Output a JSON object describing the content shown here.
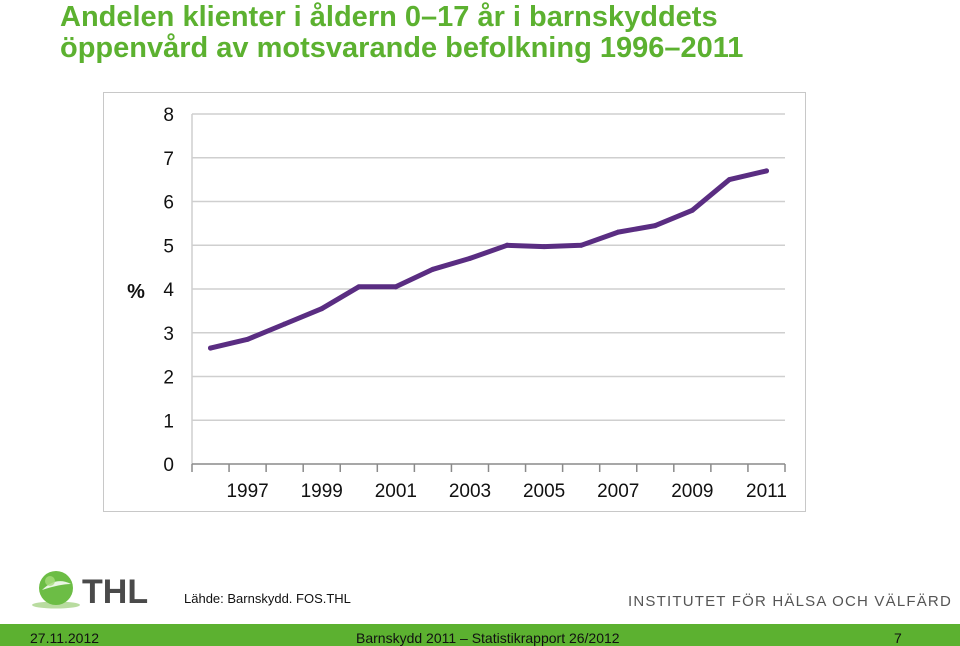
{
  "title": {
    "line1": "Andelen klienter i åldern 0–17 år i barnskyddets",
    "line2": "öppenvård av motsvarande befolkning 1996–2011"
  },
  "chart_data": {
    "type": "line",
    "title": "",
    "xlabel": "",
    "ylabel": "%",
    "ylim": [
      0,
      8
    ],
    "yticks": [
      "0",
      "1",
      "2",
      "3",
      "4",
      "5",
      "6",
      "7",
      "8"
    ],
    "x": [
      1996,
      1997,
      1998,
      1999,
      2000,
      2001,
      2002,
      2003,
      2004,
      2005,
      2006,
      2007,
      2008,
      2009,
      2010,
      2011
    ],
    "xtick_labels": [
      "1997",
      "1999",
      "2001",
      "2003",
      "2005",
      "2007",
      "2009",
      "2011"
    ],
    "grid": "horizontal",
    "legend": "none",
    "series": [
      {
        "color": "#5a2d82",
        "values": [
          2.65,
          2.85,
          3.2,
          3.55,
          4.05,
          4.05,
          4.45,
          4.7,
          5.0,
          4.97,
          5.0,
          5.3,
          5.45,
          5.8,
          6.5,
          6.7
        ]
      }
    ]
  },
  "source": "Lähde: Barnskydd. FOS.THL",
  "logo_text": "THL",
  "institute": "INSTITUTET FÖR HÄLSA OCH VÄLFÄRD",
  "footer": {
    "date": "27.11.2012",
    "title": "Barnskydd 2011 – Statistikrapport 26/2012",
    "page": "7"
  },
  "colors": {
    "title": "#5cb130",
    "footer_bar": "#5cb130",
    "series": "#5a2d82",
    "logo_text": "#4a4a4a"
  }
}
